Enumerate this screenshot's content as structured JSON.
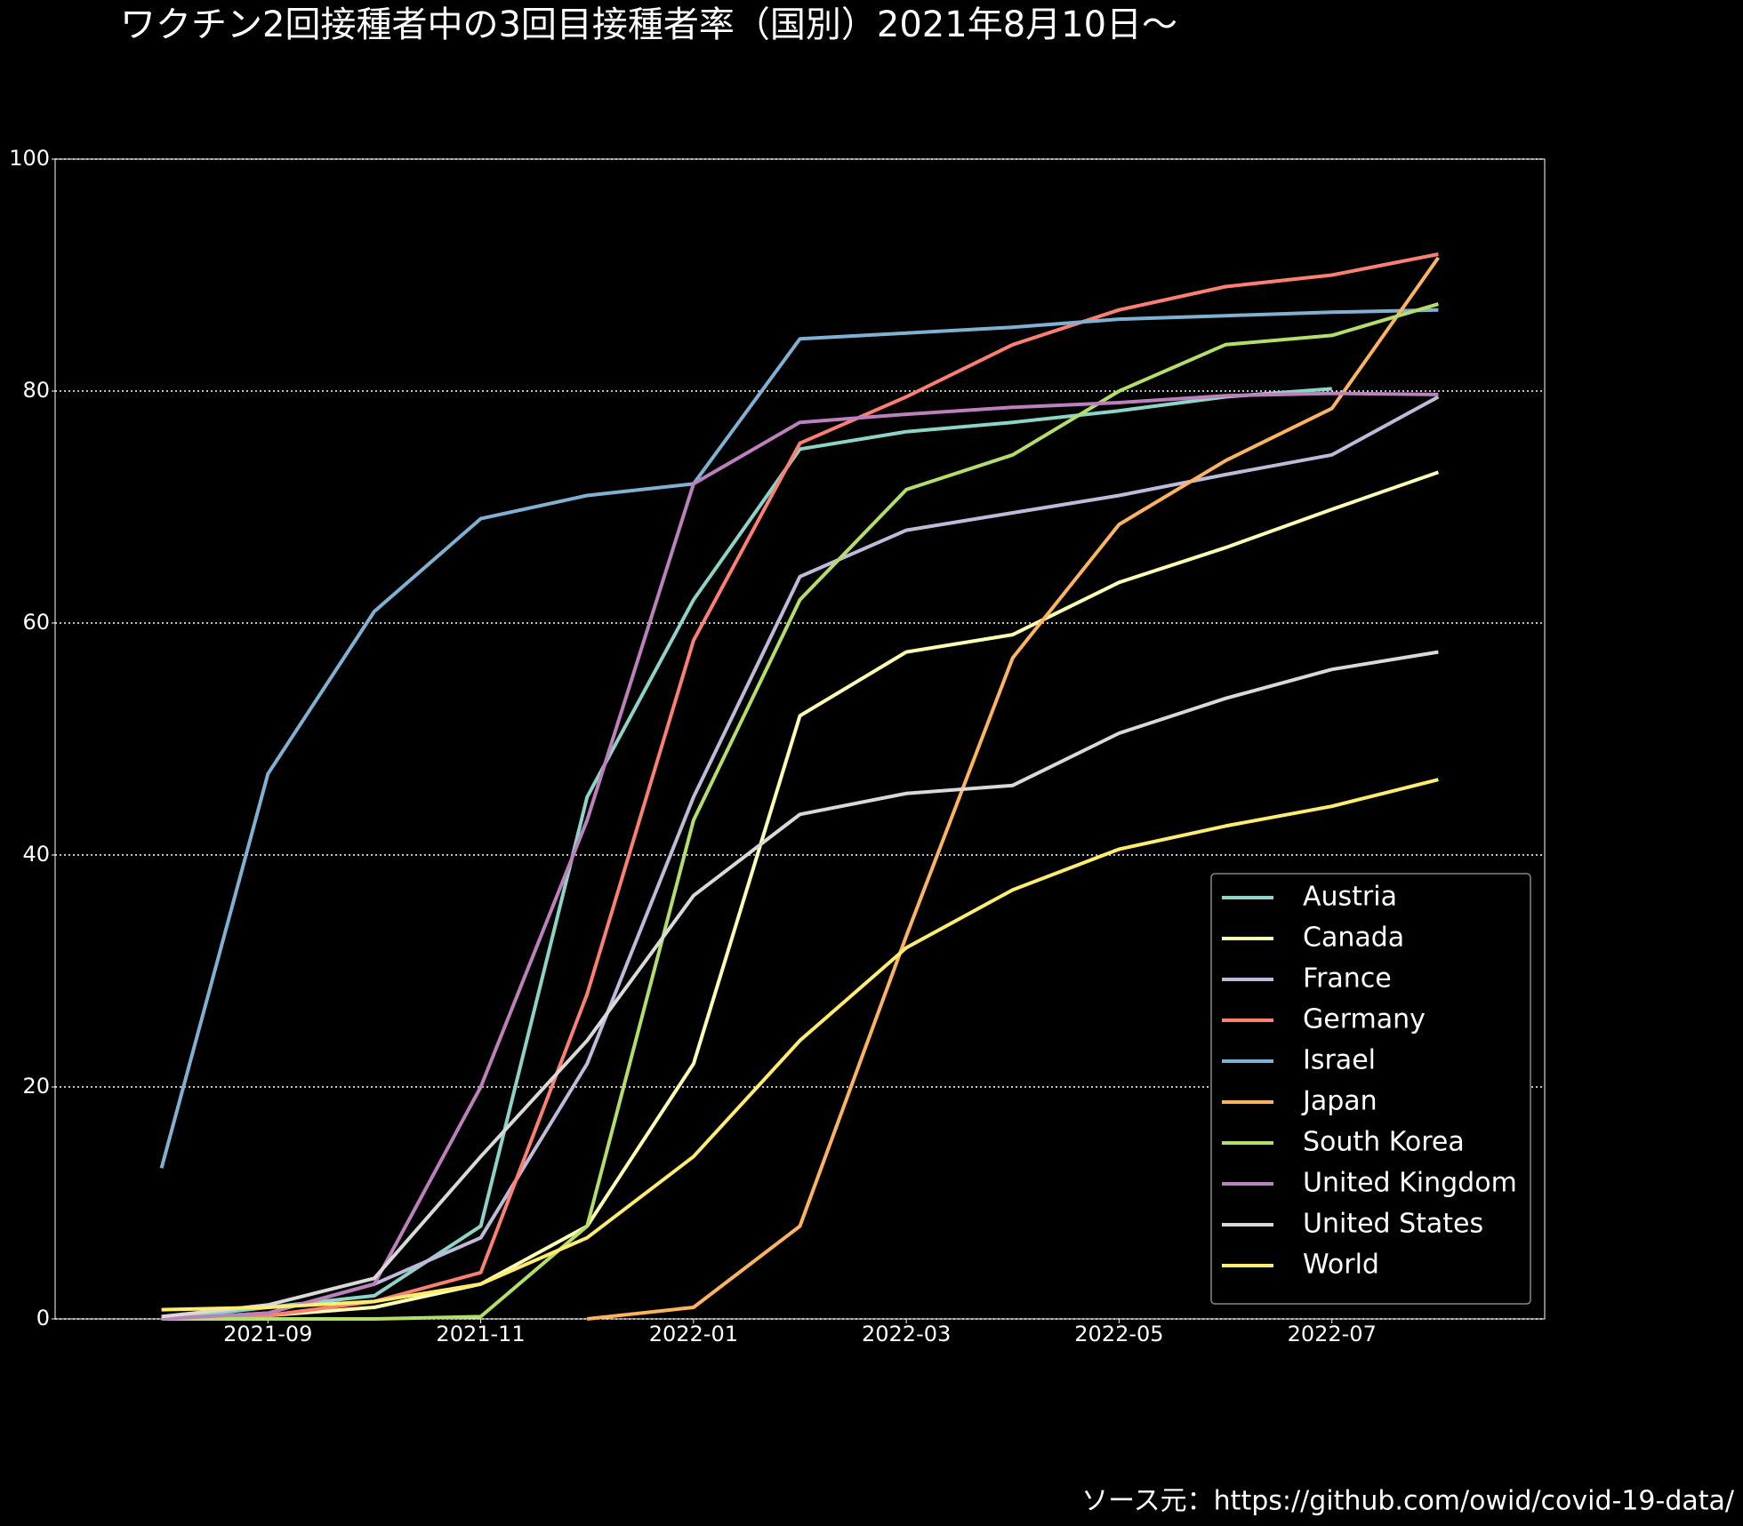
{
  "chart_data": {
    "type": "line",
    "title": "ワクチン2回接種者中の3回目接種者率（国別）2021年8月10日～",
    "source": "ソース元：https://github.com/owid/covid-19-data/",
    "x": [
      "2021-08",
      "2021-09",
      "2021-10",
      "2021-11",
      "2021-12",
      "2022-01",
      "2022-02",
      "2022-03",
      "2022-04",
      "2022-05",
      "2022-06",
      "2022-07",
      "2022-08"
    ],
    "xlim": [
      "2021-07",
      "2022-09"
    ],
    "xticks": [
      "2021-09",
      "2021-11",
      "2022-01",
      "2022-03",
      "2022-05",
      "2022-07"
    ],
    "ylim": [
      0,
      100
    ],
    "yticks": [
      0,
      20,
      40,
      60,
      80,
      100
    ],
    "grid": true,
    "legend": "lower right",
    "series": [
      {
        "name": "Austria",
        "color": "#8dd3c7",
        "values": [
          0,
          1,
          2,
          8,
          45,
          62,
          75,
          76.5,
          77.3,
          78.3,
          79.5,
          80.2,
          null
        ]
      },
      {
        "name": "Canada",
        "color": "#ffffb3",
        "values": [
          0,
          0.3,
          1,
          3,
          8,
          22,
          52,
          57.5,
          59,
          63.5,
          66.5,
          69.8,
          73
        ]
      },
      {
        "name": "France",
        "color": "#bebada",
        "values": [
          0,
          0.5,
          3,
          7,
          22,
          45,
          64,
          68,
          69.5,
          71,
          72.8,
          74.5,
          79.5
        ]
      },
      {
        "name": "Germany",
        "color": "#fb8072",
        "values": [
          0,
          0.3,
          1.5,
          4,
          28,
          58.5,
          75.5,
          79.5,
          84,
          87,
          89,
          90,
          91.8
        ]
      },
      {
        "name": "Israel",
        "color": "#80b1d3",
        "values": [
          13,
          47,
          61,
          69,
          71,
          72,
          84.5,
          85,
          85.5,
          86.2,
          86.5,
          86.8,
          87
        ]
      },
      {
        "name": "Japan",
        "color": "#fdb462",
        "values": [
          null,
          null,
          null,
          null,
          0,
          1,
          8,
          33,
          57,
          68.5,
          74,
          78.5,
          91.5
        ]
      },
      {
        "name": "South Korea",
        "color": "#b3de69",
        "values": [
          0,
          0,
          0,
          0.2,
          8,
          43,
          62,
          71.5,
          74.5,
          80,
          84,
          84.8,
          87.5
        ]
      },
      {
        "name": "United Kingdom",
        "color": "#bc80bd",
        "values": [
          0,
          0.5,
          3,
          20,
          43,
          72,
          77.3,
          78,
          78.6,
          79,
          79.6,
          79.8,
          79.7
        ]
      },
      {
        "name": "United States",
        "color": "#d9d9d9",
        "values": [
          0.2,
          1.2,
          3.5,
          14,
          24,
          36.5,
          43.5,
          45.3,
          46,
          50.5,
          53.5,
          56,
          57.5
        ]
      },
      {
        "name": "World",
        "color": "#ffed6f",
        "values": [
          0.8,
          1,
          1.5,
          3,
          7,
          14,
          24,
          32,
          37,
          40.5,
          42.5,
          44.2,
          46.5
        ]
      }
    ]
  }
}
